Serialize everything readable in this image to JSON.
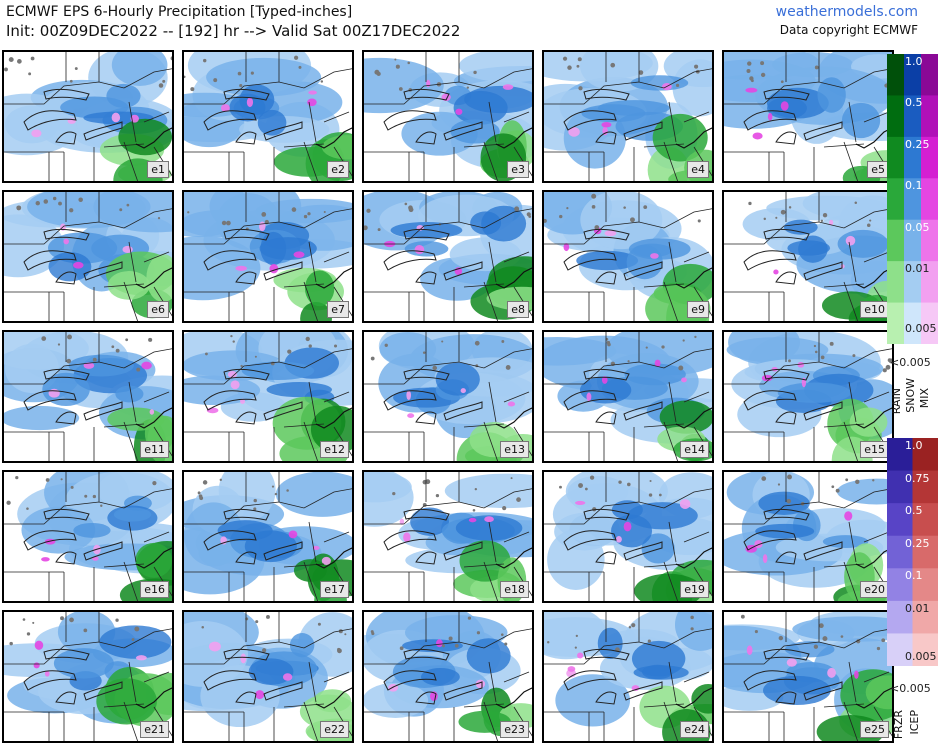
{
  "header": {
    "title": "ECMWF EPS 6-Hourly Precipitation [Typed-inches]",
    "subtitle": "Init: 00Z09DEC2022 -- [192] hr --> Valid Sat 00Z17DEC2022",
    "site": "weathermodels.com",
    "copyright": "Data copyright ECMWF"
  },
  "members": [
    "e1",
    "e2",
    "e3",
    "e4",
    "e5",
    "e6",
    "e7",
    "e8",
    "e9",
    "e10",
    "e11",
    "e12",
    "e13",
    "e14",
    "e15",
    "e16",
    "e17",
    "e18",
    "e19",
    "e20",
    "e21",
    "e22",
    "e23",
    "e24",
    "e25"
  ],
  "legend_top": {
    "ticks": [
      "1.0",
      "0.5",
      "0.25",
      "0.1",
      "0.05",
      "0.01",
      "0.005"
    ],
    "below_label": "<0.005",
    "types": [
      "RAIN",
      "SNOW",
      "MIX"
    ],
    "colors": {
      "rain": [
        "#b8f0b0",
        "#8ee08a",
        "#5cc85c",
        "#2aa83a",
        "#108a20",
        "#006d10",
        "#00500a"
      ],
      "snow": [
        "#cfe6fb",
        "#a4cdf2",
        "#78b2ea",
        "#4e95df",
        "#2d79d2",
        "#1a5cc0",
        "#0b3fa6"
      ],
      "mix": [
        "#f6c8f6",
        "#f2a0f0",
        "#ee74ea",
        "#e446e2",
        "#d41fd2",
        "#b010b8",
        "#8a0896"
      ]
    }
  },
  "legend_bottom": {
    "ticks": [
      "1.0",
      "0.75",
      "0.5",
      "0.25",
      "0.1",
      "0.01",
      "0.005"
    ],
    "below_label": "<0.005",
    "types": [
      "FRZR",
      "ICEP"
    ],
    "colors": {
      "frzr": [
        "#d8d0f8",
        "#b4a8f0",
        "#9282e4",
        "#7262d6",
        "#5844c6",
        "#4030b0",
        "#2a1e98"
      ],
      "icep": [
        "#f8c8c8",
        "#f0a8a8",
        "#e48888",
        "#d86a6a",
        "#c84e4e",
        "#b43636",
        "#9a2222"
      ]
    }
  }
}
